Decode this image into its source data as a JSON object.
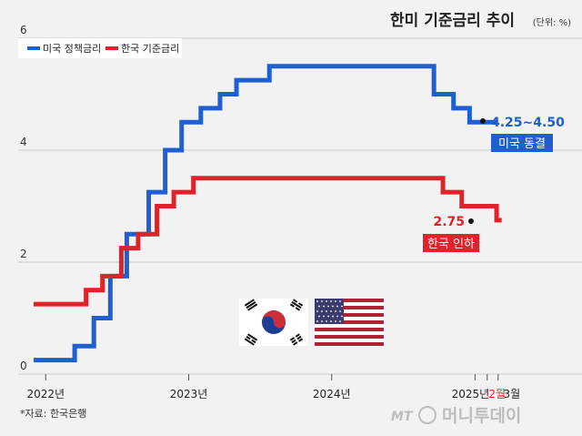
{
  "title": "한미 기준금리 추이",
  "unit": "(단위: %)",
  "source": "*자료: 한국은행",
  "watermark": {
    "brand": "MT",
    "name": "머니투데이"
  },
  "flags": [
    {
      "name": "korea-flag",
      "icon": "taegukgi"
    },
    {
      "name": "usa-flag",
      "icon": "stars-and-stripes"
    }
  ],
  "colors": {
    "us": "#1f5fd1",
    "kr": "#e0232b",
    "background": "#f2f2f2"
  },
  "annotations": {
    "us_value": "4.25~4.50",
    "us_status": "미국 동결",
    "kr_value": "2.75",
    "kr_status": "한국 인하"
  },
  "chart_data": {
    "type": "line",
    "title": "한미 기준금리 추이",
    "ylabel": "(단위: %)",
    "ylim": [
      0,
      6
    ],
    "yticks": [
      0,
      2,
      4,
      6
    ],
    "xlim": [
      "2021-11-15",
      "2025-03-20"
    ],
    "xticks": [
      {
        "date": "2022-01-01",
        "label": "2022년",
        "color": "#222222"
      },
      {
        "date": "2023-01-01",
        "label": "2023년",
        "color": "#222222"
      },
      {
        "date": "2024-01-01",
        "label": "2024년",
        "color": "#222222"
      },
      {
        "date": "2025-01-01",
        "label": "2025년",
        "color": "#222222"
      },
      {
        "date": "2025-02-01",
        "label": "2월",
        "color": "#e0232b"
      },
      {
        "date": "2025-03-01",
        "label": "3월",
        "color": "#222222"
      }
    ],
    "grid": true,
    "legend": "top-left",
    "series": [
      {
        "name": "미국 정책금리",
        "key": "us",
        "step": true,
        "points": [
          [
            "2021-12-01",
            0.25
          ],
          [
            "2022-03-16",
            0.5
          ],
          [
            "2022-05-04",
            1.0
          ],
          [
            "2022-06-15",
            1.75
          ],
          [
            "2022-07-27",
            2.5
          ],
          [
            "2022-09-21",
            3.25
          ],
          [
            "2022-11-02",
            4.0
          ],
          [
            "2022-12-14",
            4.5
          ],
          [
            "2023-02-01",
            4.75
          ],
          [
            "2023-03-22",
            5.0
          ],
          [
            "2023-05-03",
            5.25
          ],
          [
            "2023-07-26",
            5.5
          ],
          [
            "2024-09-18",
            5.0
          ],
          [
            "2024-11-07",
            4.75
          ],
          [
            "2024-12-18",
            4.5
          ],
          [
            "2025-03-01",
            4.5
          ]
        ]
      },
      {
        "name": "한국 기준금리",
        "key": "kr",
        "step": true,
        "points": [
          [
            "2021-12-01",
            1.25
          ],
          [
            "2022-01-14",
            1.25
          ],
          [
            "2022-04-14",
            1.5
          ],
          [
            "2022-05-26",
            1.75
          ],
          [
            "2022-07-13",
            2.25
          ],
          [
            "2022-08-25",
            2.5
          ],
          [
            "2022-10-12",
            3.0
          ],
          [
            "2022-11-24",
            3.25
          ],
          [
            "2023-01-13",
            3.5
          ],
          [
            "2024-10-11",
            3.25
          ],
          [
            "2024-11-28",
            3.0
          ],
          [
            "2025-02-25",
            2.75
          ],
          [
            "2025-03-10",
            2.75
          ]
        ]
      }
    ]
  }
}
